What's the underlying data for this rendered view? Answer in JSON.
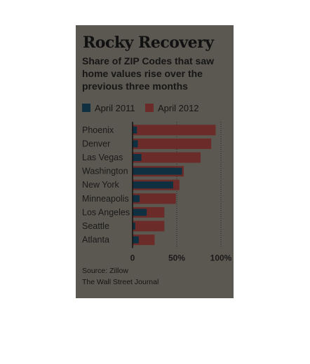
{
  "chart_data": {
    "type": "bar",
    "orientation": "horizontal",
    "title": "Rocky Recovery",
    "subtitle": "Share of ZIP Codes that saw home values rise over the previous three months",
    "categories": [
      "Phoenix",
      "Denver",
      "Las Vegas",
      "Washington",
      "New York",
      "Minneapolis",
      "Los Angeles",
      "Seattle",
      "Atlanta"
    ],
    "series": [
      {
        "name": "April 2011",
        "color": "#0f3040",
        "values": [
          5,
          6,
          10,
          56,
          46,
          8,
          16,
          3,
          7
        ]
      },
      {
        "name": "April 2012",
        "color": "#6b2c29",
        "values": [
          94,
          89,
          77,
          58,
          53,
          49,
          36,
          36,
          25
        ]
      }
    ],
    "xlim": [
      0,
      100
    ],
    "xticks": [
      "0",
      "50%",
      "100%"
    ],
    "grid": true,
    "legend": "top-left"
  },
  "source": {
    "line1": "Source: Zillow",
    "line2": "The Wall Street Journal"
  }
}
